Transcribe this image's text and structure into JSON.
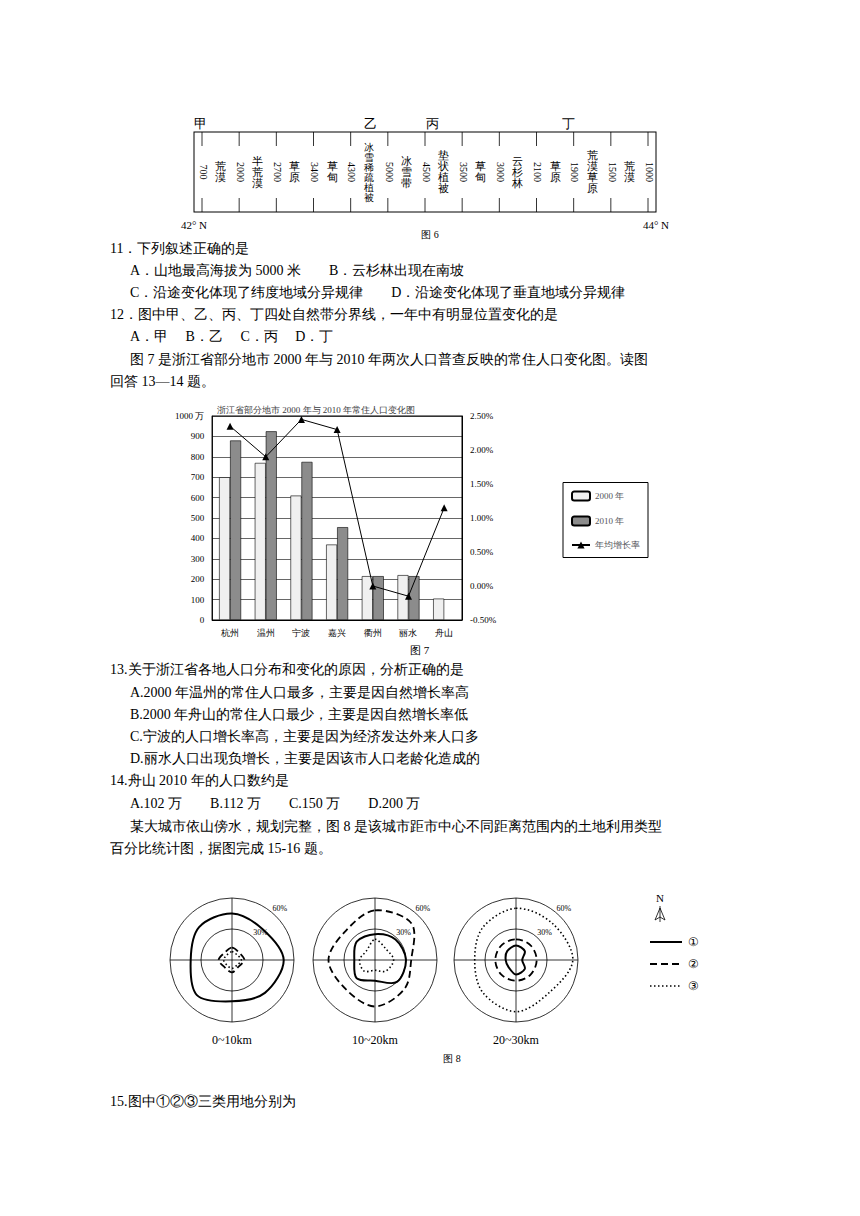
{
  "figure6": {
    "markers": [
      "甲",
      "乙",
      "丙",
      "丁"
    ],
    "altitudes": [
      700,
      2000,
      2700,
      3400,
      4300,
      5000,
      4500,
      3500,
      3000,
      2100,
      1900,
      1500,
      1000
    ],
    "zones": [
      "荒漠",
      "半荒漠",
      "草原",
      "草甸",
      "冰雪稀疏植被",
      "冰雪带",
      "垫状植被",
      "草甸",
      "云杉林",
      "草原",
      "荒漠草原",
      "荒漠"
    ],
    "lat_left": "42° N",
    "lat_right": "44° N",
    "caption": "图 6"
  },
  "lines": [
    "11．下列叙述正确的是",
    "A．山地最高海拔为 5000 米　　B．云杉林出现在南坡",
    "C．沿途变化体现了纬度地域分异规律　　D．沿途变化体现了垂直地域分异规律",
    "12．图中甲、乙、丙、丁四处自然带分界线，一年中有明显位置变化的是",
    "A．甲　 B．乙　 C．丙　 D．丁",
    "图 7 是浙江省部分地市 2000 年与 2010 年两次人口普查反映的常住人口变化图。读图",
    "回答 13—14 题。",
    "13.关于浙江省各地人口分布和变化的原因，分析正确的是",
    "A.2000 年温州的常住人口最多，主要是因自然增长率高",
    "B.2000 年舟山的常住人口最少，主要是因自然增长率低",
    "C.宁波的人口增长率高，主要是因为经济发达外来人口多",
    "D.丽水人口出现负增长，主要是因该市人口老龄化造成的",
    "14.舟山 2010 年的人口数约是",
    "A.102 万　　B.112 万　　C.150 万　　D.200 万",
    "某大城市依山傍水，规划完整，图 8 是该城市距市中心不同距离范围内的土地利用类型",
    "百分比统计图，据图完成 15-16 题。",
    "15.图中①②③三类用地分别为"
  ],
  "figure7_caption": "图 7",
  "chart_data": {
    "type": "bar",
    "title": "浙江省部分地市 2000 年与 2010 年常住人口变化图",
    "categories": [
      "杭州",
      "温州",
      "宁波",
      "嘉兴",
      "衢州",
      "丽水",
      "舟山"
    ],
    "series": [
      {
        "name": "2000 年",
        "color": "#f0f0f0",
        "values": [
          700,
          770,
          610,
          370,
          215,
          220,
          105
        ]
      },
      {
        "name": "2010 年",
        "color": "#8c8c8c",
        "values": [
          880,
          925,
          775,
          455,
          215,
          215,
          null
        ]
      },
      {
        "name": "年均增长率",
        "type": "line",
        "axis": "y2",
        "color": "#000000",
        "marker": "triangle",
        "values": [
          2.35,
          1.9,
          2.45,
          2.3,
          0.0,
          -0.15,
          1.15
        ]
      }
    ],
    "ylim": [
      0,
      1000
    ],
    "yticks": [
      0,
      100,
      200,
      300,
      400,
      500,
      600,
      700,
      800,
      900,
      {
        "value": 1000,
        "label": "1000 万"
      }
    ],
    "y2lim": [
      -0.5,
      2.5
    ],
    "y2ticks": [
      {
        "value": -0.5,
        "label": "-0.50%"
      },
      {
        "value": 0,
        "label": "0.00%"
      },
      {
        "value": 0.5,
        "label": "0.50%"
      },
      {
        "value": 1,
        "label": "1.00%"
      },
      {
        "value": 1.5,
        "label": "1.50%"
      },
      {
        "value": 2,
        "label": "2.00%"
      },
      {
        "value": 2.5,
        "label": "2.50%"
      }
    ],
    "grid": true,
    "legend": "right"
  },
  "figure8": {
    "ring_labels": [
      {
        "value": 60,
        "label": "60%"
      },
      {
        "value": 30,
        "label": "30%"
      }
    ],
    "north": "N",
    "caption": "图 8",
    "panels": [
      {
        "label": "0~10km",
        "curves": [
          {
            "name": "①",
            "line_style": "solid",
            "values": [
              45,
              42,
              50,
              45,
              40,
              48,
              40,
              45
            ]
          },
          {
            "name": "②",
            "line_style": "dashed",
            "values": [
              12,
              10,
              12,
              9,
              12,
              10,
              13,
              10
            ]
          },
          {
            "name": "③",
            "line_style": "dotted",
            "values": [
              8,
              7,
              9,
              7,
              8,
              7,
              8,
              7
            ]
          }
        ]
      },
      {
        "label": "10~20km",
        "curves": [
          {
            "name": "①",
            "line_style": "solid",
            "values": [
              25,
              28,
              30,
              30,
              20,
              25,
              20,
              25
            ]
          },
          {
            "name": "②",
            "line_style": "dashed",
            "values": [
              48,
              50,
              35,
              40,
              45,
              40,
              45,
              40
            ]
          },
          {
            "name": "③",
            "line_style": "dotted",
            "values": [
              20,
              15,
              18,
              15,
              10,
              15,
              15,
              12
            ]
          }
        ]
      },
      {
        "label": "20~30km",
        "curves": [
          {
            "name": "①",
            "line_style": "solid",
            "values": [
              14,
              12,
              6,
              12,
              14,
              10,
              10,
              12
            ]
          },
          {
            "name": "②",
            "line_style": "dashed",
            "values": [
              20,
              20,
              20,
              20,
              20,
              20,
              20,
              20
            ]
          },
          {
            "name": "③",
            "line_style": "dotted",
            "values": [
              50,
              50,
              55,
              45,
              50,
              45,
              40,
              45
            ]
          }
        ]
      }
    ]
  }
}
